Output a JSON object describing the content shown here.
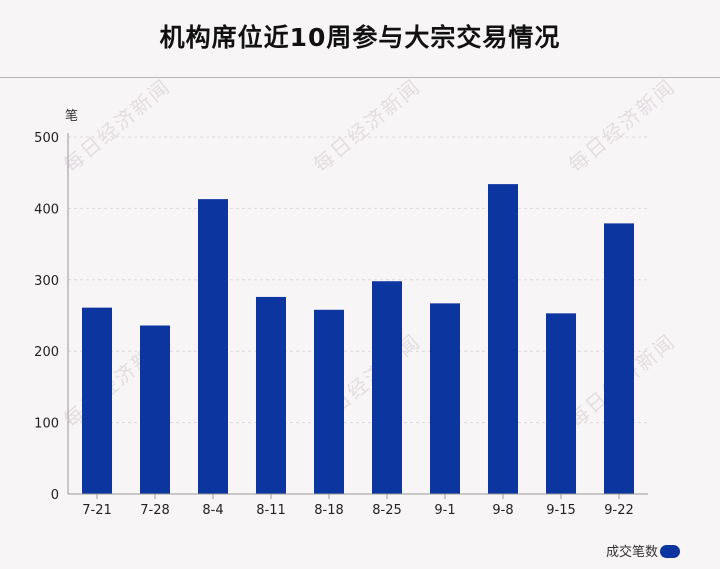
{
  "chart_data": {
    "type": "bar",
    "title": "机构席位近10周参与大宗交易情况",
    "ylabel": "笔",
    "xlabel": "",
    "categories": [
      "7-21",
      "7-28",
      "8-4",
      "8-11",
      "8-18",
      "8-25",
      "9-1",
      "9-8",
      "9-15",
      "9-22"
    ],
    "series": [
      {
        "name": "成交笔数",
        "values": [
          261,
          236,
          413,
          276,
          258,
          298,
          267,
          434,
          253,
          379
        ]
      }
    ],
    "ylim": [
      0,
      500
    ],
    "yticks": [
      0,
      100,
      200,
      300,
      400,
      500
    ],
    "grid": true,
    "legend_position": "bottom-right",
    "bar_color": "#0c35a0"
  },
  "watermark_text": "每日经济新闻"
}
